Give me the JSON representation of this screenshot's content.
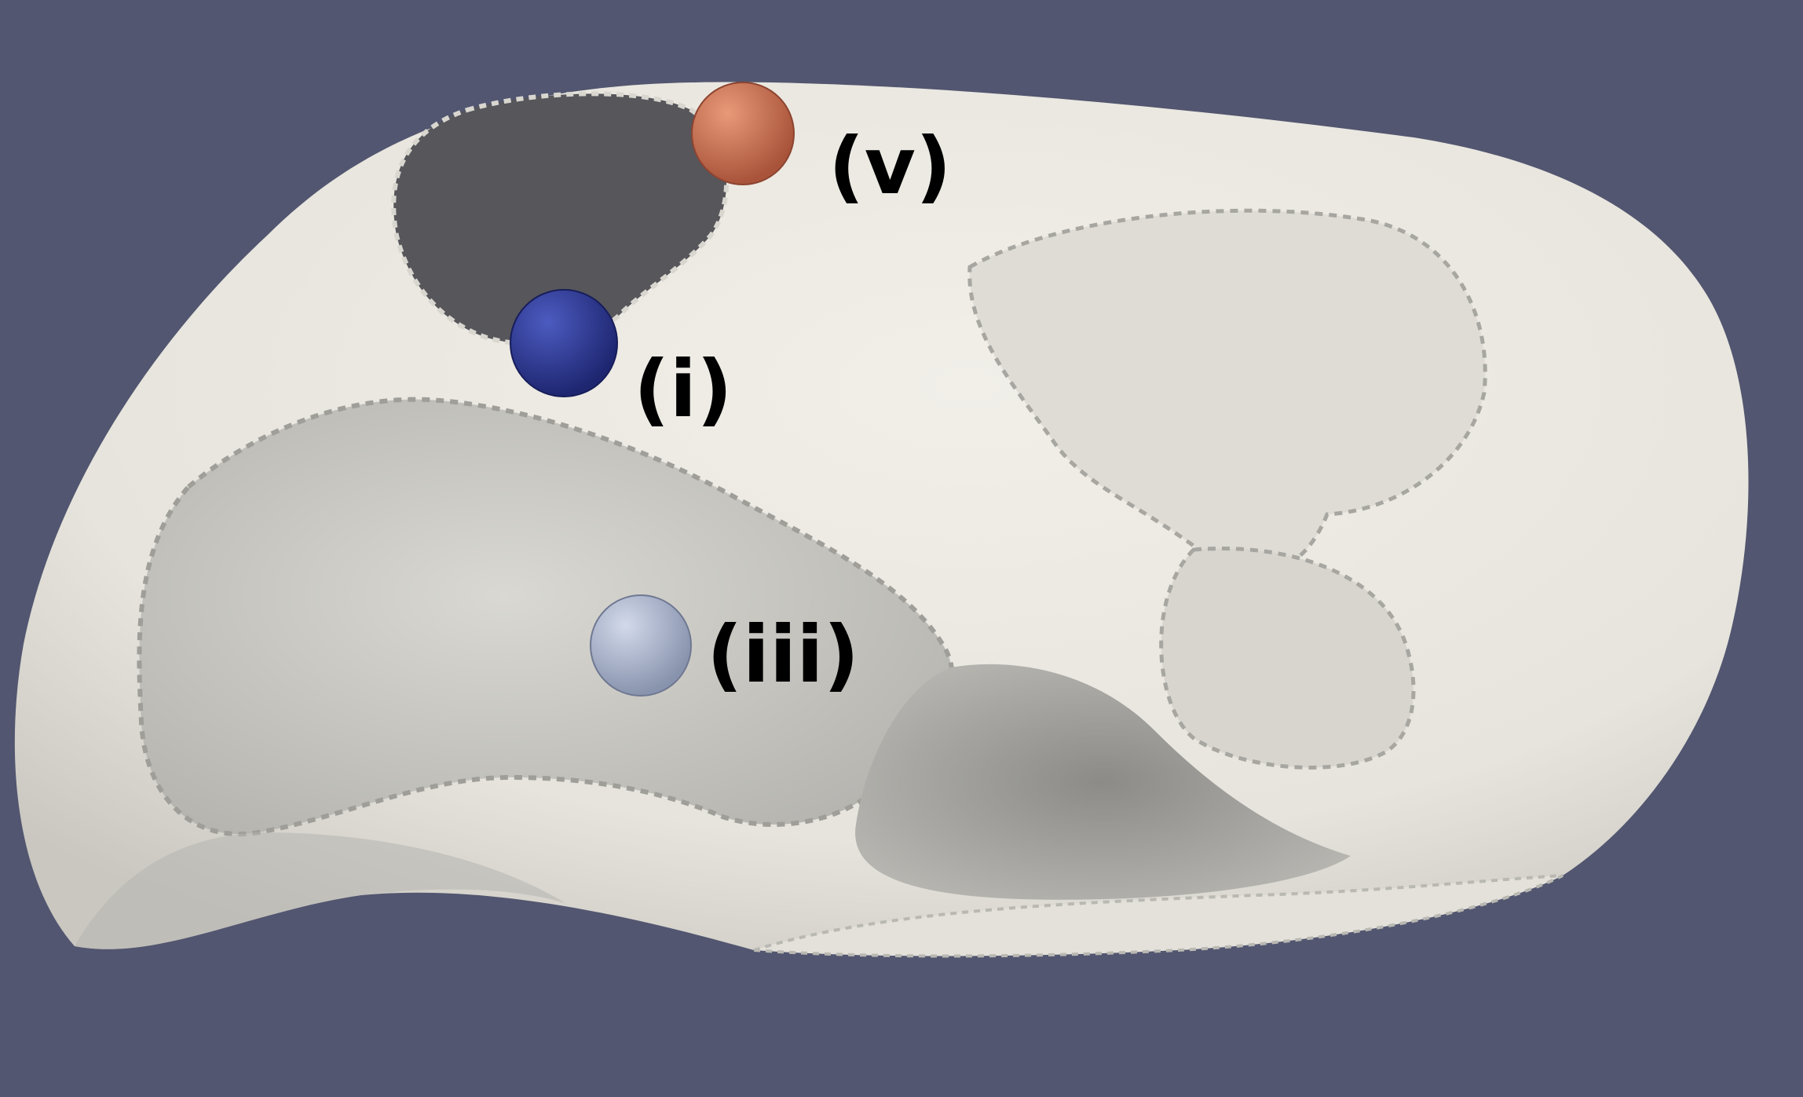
{
  "background_color": "#525670",
  "surface_color": "#ebe9e1",
  "region_color": "#c9c8c3",
  "opening_color": "#55555a",
  "markers": [
    {
      "id": "v",
      "label": "(v)",
      "color": "#c4694a"
    },
    {
      "id": "i",
      "label": "(i)",
      "color": "#2a3590"
    },
    {
      "id": "iii",
      "label": "(iii)",
      "color": "#a9b2c8"
    }
  ]
}
